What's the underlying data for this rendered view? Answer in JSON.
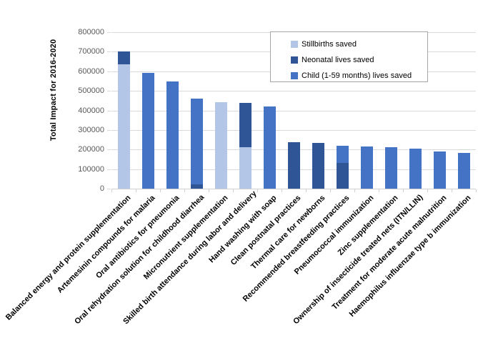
{
  "chart_data": {
    "type": "bar",
    "stacked": true,
    "title": "",
    "xlabel": "",
    "ylabel": "Total Impact for 2016-2020",
    "ylim": [
      0,
      800000
    ],
    "ytick_step": 100000,
    "grid": true,
    "legend_position": "top-right",
    "categories": [
      "Balanced energy and protein supplementation",
      "Artemesinin compounds for malaria",
      "Oral antibiotics for pneumonia",
      "Oral rehydration solution for childhood diarrhea",
      "Micronutrient supplementation",
      "Skilled birth attendance during labor and delivery",
      "Hand washing with soap",
      "Clean postnatal practices",
      "Thermal care for newborns",
      "Recommended breastfeeding practices",
      "Pneumococcal immunization",
      "Zinc supplementation",
      "Ownership of insecticide treated nets (ITN/LLIN)",
      "Treatment for moderate acute malnutrition",
      "Haemophilus influenzae type b immunization"
    ],
    "series": [
      {
        "name": "Stillbirths saved",
        "color": "#b4c6e7",
        "values": [
          634000,
          0,
          0,
          0,
          441000,
          213000,
          0,
          0,
          0,
          0,
          0,
          0,
          0,
          0,
          0
        ]
      },
      {
        "name": "Neonatal lives saved",
        "color": "#2f5597",
        "values": [
          66000,
          0,
          0,
          22000,
          0,
          224000,
          0,
          238000,
          232000,
          132000,
          0,
          0,
          0,
          0,
          0
        ]
      },
      {
        "name": "Child (1-59 months) lives saved",
        "color": "#4472c4",
        "values": [
          0,
          593000,
          547000,
          438000,
          0,
          0,
          420000,
          0,
          0,
          88000,
          216000,
          211000,
          205000,
          190000,
          183000
        ]
      }
    ],
    "totals": [
      700000,
      593000,
      547000,
      460000,
      441000,
      437000,
      420000,
      238000,
      232000,
      220000,
      216000,
      211000,
      205000,
      190000,
      183000
    ],
    "colors": {
      "gridline": "#d9d9d9",
      "axis_line": "#d0d0d0",
      "tick_label": "#595959",
      "category_label": "#000000",
      "legend_border": "#a6a6a6"
    }
  }
}
